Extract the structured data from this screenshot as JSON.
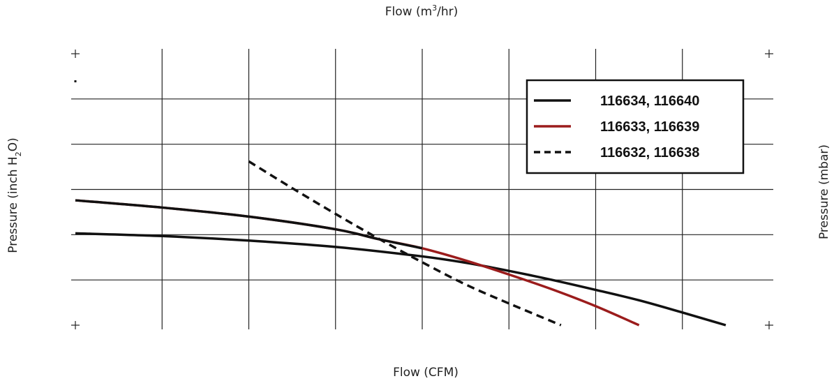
{
  "chart_data": {
    "type": "line",
    "title": "",
    "top_xlabel": "Flow (m",
    "top_xlabel_sup": "3",
    "top_xlabel_tail": "/hr)",
    "xlabel": "Flow (CFM)",
    "ylabel": "Pressure (inch  H",
    "ylabel_sub": "2",
    "ylabel_tail": "O)",
    "ylabel_right": "Pressure (mbar)",
    "xlim": [
      0,
      8
    ],
    "ylim": [
      0,
      6
    ],
    "grid": true,
    "legend_position": "top-right",
    "series": [
      {
        "name": "116634, 116640",
        "color": "#111111",
        "dashed": false,
        "x": [
          0,
          1,
          2,
          3,
          4,
          4.5,
          5,
          5.5,
          6,
          6.5,
          7,
          7.5
        ],
        "y": [
          2.03,
          1.97,
          1.87,
          1.73,
          1.52,
          1.38,
          1.2,
          1.0,
          0.78,
          0.55,
          0.28,
          0.0
        ]
      },
      {
        "name": "116633, 116639",
        "color": "#9b1c1c",
        "dashed": false,
        "x": [
          0,
          1,
          2,
          3,
          3.5,
          4,
          4.5,
          5,
          5.5,
          6,
          6.5
        ],
        "y": [
          2.76,
          2.6,
          2.4,
          2.12,
          1.9,
          1.7,
          1.43,
          1.12,
          0.79,
          0.42,
          0.0
        ]
      },
      {
        "name": "116632, 116638",
        "color": "#111111",
        "dashed": true,
        "x": [
          2,
          2.5,
          3,
          3.5,
          4,
          4.5,
          5,
          5.6
        ],
        "y": [
          3.62,
          3.03,
          2.46,
          1.91,
          1.39,
          0.9,
          0.48,
          0.0
        ]
      }
    ]
  }
}
